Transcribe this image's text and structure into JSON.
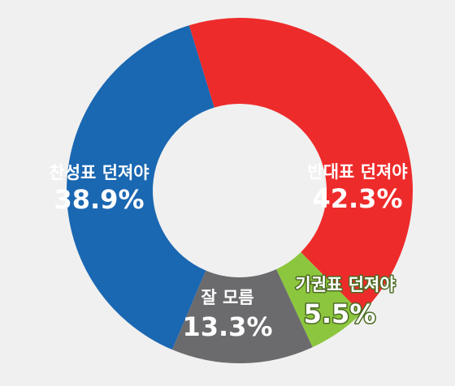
{
  "chart_data": {
    "type": "donut",
    "categories": [
      "반대표 던져야",
      "기권표 던져야",
      "잘 모름",
      "찬성표 던져야"
    ],
    "values": [
      42.3,
      5.5,
      13.3,
      38.9
    ],
    "value_labels": [
      "42.3%",
      "5.5%",
      "13.3%",
      "38.9%"
    ],
    "colors": [
      "#ee2b2b",
      "#8cc63e",
      "#6b6b6e",
      "#1a67b2"
    ]
  }
}
